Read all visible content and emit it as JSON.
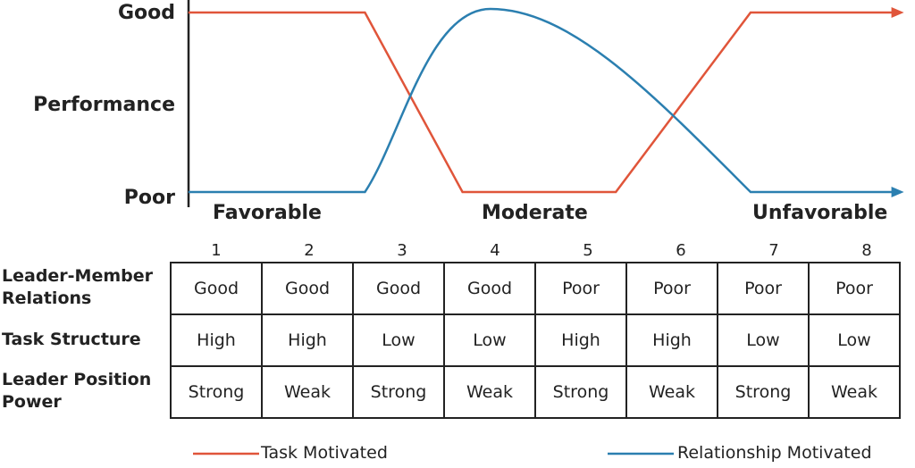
{
  "chart_data": {
    "type": "line",
    "ylabel": "Performance",
    "y_ticks": [
      "Poor",
      "Good"
    ],
    "x_categories": [
      "Favorable",
      "Moderate",
      "Unfavorable"
    ],
    "x": [
      0.7,
      2.6,
      3.6,
      5.3,
      6.75,
      8.4
    ],
    "series": [
      {
        "name": "Task Motivated",
        "color": "#e0553a",
        "points": [
          [
            0.7,
            1
          ],
          [
            2.6,
            1
          ],
          [
            3.65,
            0
          ],
          [
            5.3,
            0
          ],
          [
            6.75,
            1
          ],
          [
            8.4,
            1
          ]
        ]
      },
      {
        "name": "Relationship Motivated",
        "color": "#2b7fb0",
        "points": [
          [
            0.7,
            0
          ],
          [
            2.6,
            0
          ],
          [
            3.95,
            1.02
          ],
          [
            6.75,
            0
          ],
          [
            8.4,
            0
          ]
        ]
      }
    ],
    "legend": "bottom"
  },
  "table": {
    "situations": [
      "1",
      "2",
      "3",
      "4",
      "5",
      "6",
      "7",
      "8"
    ],
    "rows": [
      {
        "label": "Leader-Member Relations",
        "cells": [
          "Good",
          "Good",
          "Good",
          "Good",
          "Poor",
          "Poor",
          "Poor",
          "Poor"
        ]
      },
      {
        "label": "Task Structure",
        "cells": [
          "High",
          "High",
          "Low",
          "Low",
          "High",
          "High",
          "Low",
          "Low"
        ]
      },
      {
        "label": "Leader Position Power",
        "cells": [
          "Strong",
          "Weak",
          "Strong",
          "Weak",
          "Strong",
          "Weak",
          "Strong",
          "Weak"
        ]
      }
    ]
  }
}
